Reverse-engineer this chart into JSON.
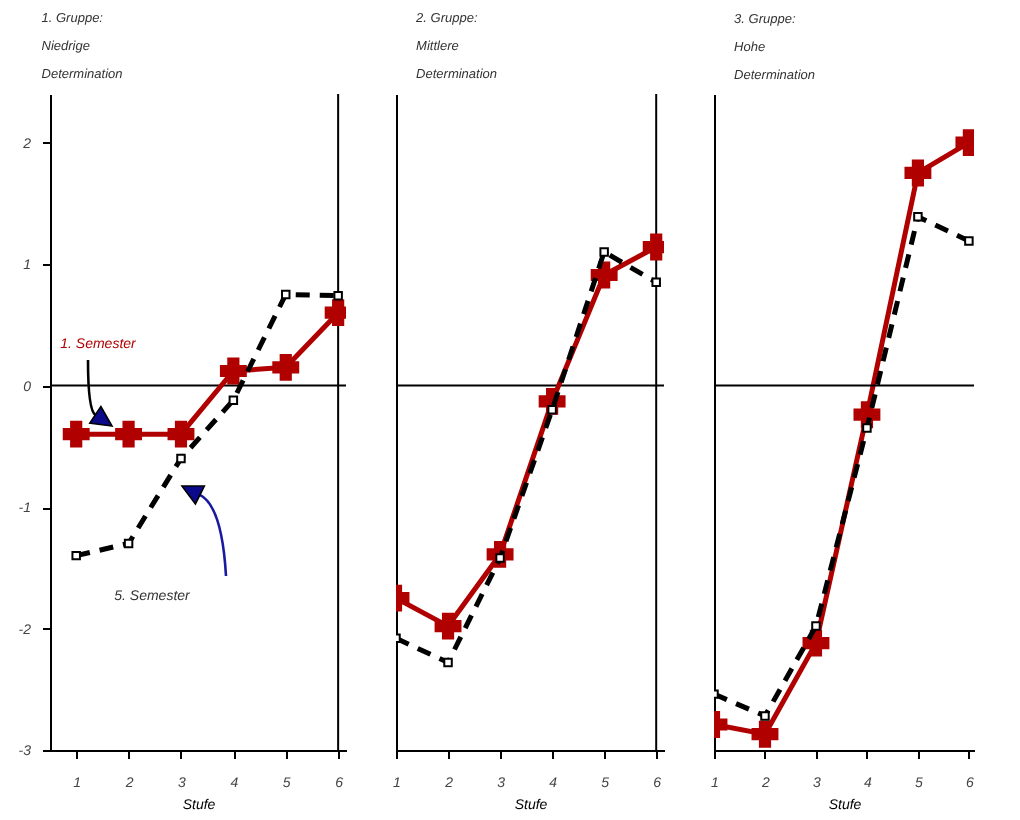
{
  "chart_data": [
    {
      "type": "line",
      "title": "1. Gruppe:\nNiedrige\nDetermination",
      "xlabel": "Stufe",
      "x": [
        1,
        2,
        3,
        4,
        5,
        6
      ],
      "xlim": [
        0.5,
        6.15
      ],
      "xticks": [
        1,
        2,
        3,
        4,
        5,
        6
      ],
      "ylim": [
        -3,
        2.4
      ],
      "yticks": [
        -3,
        -2,
        -1,
        0,
        1,
        2
      ],
      "grid": false,
      "series": [
        {
          "color": "#b00000",
          "marker": "cross",
          "line_style": "solid",
          "values": [
            -0.4,
            -0.4,
            -0.4,
            0.12,
            0.15,
            0.6
          ]
        },
        {
          "color": "#000000",
          "marker": "square",
          "line_style": "dashed",
          "values": [
            -1.4,
            -1.3,
            -0.6,
            -0.12,
            0.75,
            0.74
          ]
        }
      ],
      "ref_lines": [
        {
          "axis": "y",
          "value": 0
        },
        {
          "axis": "x",
          "value": 6
        }
      ],
      "annotations": [
        "1. Semester",
        "5. Semester"
      ]
    },
    {
      "type": "line",
      "title": "2. Gruppe:\nMittlere\nDetermination",
      "xlabel": "Stufe",
      "x": [
        1,
        2,
        3,
        4,
        5,
        6
      ],
      "xlim": [
        1,
        6.15
      ],
      "xticks": [
        1,
        2,
        3,
        4,
        5,
        6
      ],
      "ylim": [
        -3,
        2.4
      ],
      "yticks": [
        -3,
        -2,
        -1,
        0,
        1,
        2
      ],
      "grid": false,
      "tick_labels": "x",
      "series": [
        {
          "color": "#b00000",
          "marker": "cross",
          "line_style": "solid",
          "values": [
            -1.75,
            -1.98,
            -1.39,
            -0.13,
            0.91,
            1.14
          ]
        },
        {
          "color": "#000000",
          "marker": "square",
          "line_style": "dashed",
          "values": [
            -2.08,
            -2.28,
            -1.42,
            -0.2,
            1.1,
            0.85
          ]
        }
      ],
      "ref_lines": [
        {
          "axis": "y",
          "value": 0
        },
        {
          "axis": "x",
          "value": 6
        }
      ]
    },
    {
      "type": "line",
      "title": "3. Gruppe:\nHohe\nDetermination",
      "xlabel": "Stufe",
      "x": [
        1,
        2,
        3,
        4,
        5,
        6
      ],
      "xlim": [
        1,
        6.1
      ],
      "xticks": [
        1,
        2,
        3,
        4,
        5,
        6
      ],
      "ylim": [
        -3,
        2.4
      ],
      "yticks": [
        -3,
        -2,
        -1,
        0,
        1,
        2
      ],
      "grid": false,
      "tick_labels": "x",
      "series": [
        {
          "color": "#b00000",
          "marker": "cross",
          "line_style": "solid",
          "values": [
            -2.79,
            -2.87,
            -2.12,
            -0.24,
            1.75,
            2.0
          ]
        },
        {
          "color": "#000000",
          "marker": "square",
          "line_style": "dashed",
          "values": [
            -2.54,
            -2.72,
            -1.98,
            -0.35,
            1.39,
            1.19
          ]
        }
      ],
      "ref_lines": [
        {
          "axis": "y",
          "value": 0
        }
      ]
    }
  ]
}
